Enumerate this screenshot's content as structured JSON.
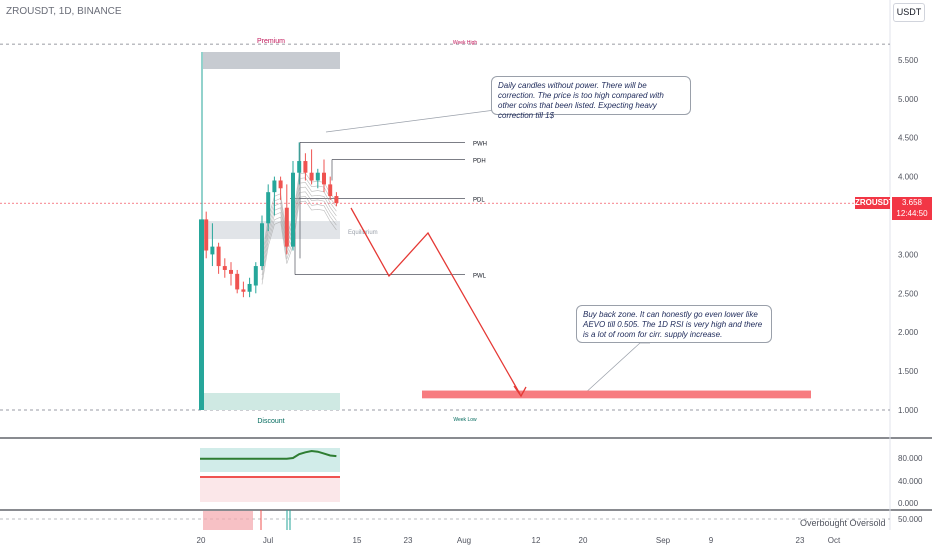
{
  "symbol_header": "ZROUSDT, 1D, BINANCE",
  "currency": "USDT",
  "price_tag": {
    "symbol": "ZROUSDT",
    "price": "3.658",
    "countdown": "12:44:50",
    "color": "#f23645"
  },
  "notes": {
    "top": "Daily candles without power. There will be correction. The price is too high compared with other coins that been listed. Expecting heavy correction till 1$",
    "bottom": "Buy back zone. It can honestly go even lower like AEVO till 0.505. The 1D RSI is very high and there is a lot of room for cirr. supply increase."
  },
  "levels": {
    "premium": "Premium",
    "discount": "Discount",
    "equilibrium": "Equilibrium",
    "week_high": "Week High",
    "week_low": "Week Low",
    "pwh": "PWH",
    "pdh": "PDH",
    "pdl": "PDL",
    "pwl": "PWL"
  },
  "indicator_legend": "Overbought  Oversold",
  "colors": {
    "up": "#26a69a",
    "down": "#ef5350",
    "projection": "#e53935",
    "buy_zone": "#f77c80",
    "premium_zone": "#c7cbd1",
    "discount_zone": "#cfe9e3",
    "rsi_line": "#2e7d32"
  },
  "chart_data": {
    "type": "candlestick",
    "title": "",
    "y_ticks": [
      "5.500",
      "5.000",
      "4.500",
      "4.000",
      "3.500",
      "3.000",
      "2.500",
      "2.000",
      "1.500",
      "1.000"
    ],
    "x_ticks": [
      "20",
      "Jul",
      "15",
      "23",
      "Aug",
      "12",
      "20",
      "Sep",
      "9",
      "23",
      "Oct"
    ],
    "ylim": [
      0.7,
      5.9
    ],
    "price_levels": {
      "week_high": 5.6,
      "week_low": 1.0,
      "pwh": 4.44,
      "pdh": 4.22,
      "pdl": 3.72,
      "pwl": 2.74,
      "equilibrium": 3.3,
      "current": 3.658
    },
    "candles": [
      {
        "o": 1.0,
        "h": 5.6,
        "l": 1.0,
        "c": 3.45
      },
      {
        "o": 3.45,
        "h": 3.55,
        "l": 2.95,
        "c": 3.05
      },
      {
        "o": 3.0,
        "h": 3.4,
        "l": 2.85,
        "c": 3.1
      },
      {
        "o": 3.1,
        "h": 3.15,
        "l": 2.75,
        "c": 2.85
      },
      {
        "o": 2.85,
        "h": 2.95,
        "l": 2.7,
        "c": 2.8
      },
      {
        "o": 2.8,
        "h": 2.9,
        "l": 2.6,
        "c": 2.75
      },
      {
        "o": 2.75,
        "h": 2.8,
        "l": 2.5,
        "c": 2.55
      },
      {
        "o": 2.55,
        "h": 2.65,
        "l": 2.45,
        "c": 2.52
      },
      {
        "o": 2.52,
        "h": 2.7,
        "l": 2.45,
        "c": 2.62
      },
      {
        "o": 2.6,
        "h": 2.9,
        "l": 2.5,
        "c": 2.85
      },
      {
        "o": 2.85,
        "h": 3.5,
        "l": 2.8,
        "c": 3.4
      },
      {
        "o": 3.4,
        "h": 3.9,
        "l": 3.3,
        "c": 3.8
      },
      {
        "o": 3.8,
        "h": 4.0,
        "l": 3.5,
        "c": 3.95
      },
      {
        "o": 3.95,
        "h": 4.0,
        "l": 3.7,
        "c": 3.85
      },
      {
        "o": 3.6,
        "h": 3.9,
        "l": 3.0,
        "c": 3.1
      },
      {
        "o": 3.1,
        "h": 4.2,
        "l": 3.05,
        "c": 4.05
      },
      {
        "o": 4.05,
        "h": 4.44,
        "l": 3.9,
        "c": 4.2
      },
      {
        "o": 4.2,
        "h": 4.3,
        "l": 3.95,
        "c": 4.05
      },
      {
        "o": 4.05,
        "h": 4.35,
        "l": 3.9,
        "c": 3.95
      },
      {
        "o": 3.95,
        "h": 4.1,
        "l": 3.85,
        "c": 4.05
      },
      {
        "o": 4.05,
        "h": 4.22,
        "l": 3.8,
        "c": 3.9
      },
      {
        "o": 3.9,
        "h": 4.0,
        "l": 3.7,
        "c": 3.75
      },
      {
        "o": 3.75,
        "h": 3.8,
        "l": 3.62,
        "c": 3.66
      }
    ],
    "projection_path": [
      {
        "bar": 23.5,
        "price": 3.7
      },
      {
        "bar": 29.5,
        "price": 2.75
      },
      {
        "bar": 34,
        "price": 3.3
      },
      {
        "bar": 43,
        "price": 1.2
      }
    ],
    "buy_zone": [
      1.15,
      1.25
    ],
    "rsi": {
      "ylim": [
        0,
        100
      ],
      "ticks": [
        "80.000",
        "40.000",
        "0.000"
      ],
      "overbought": 70,
      "oversold": 30,
      "values": [
        68,
        68,
        68,
        68,
        68,
        68,
        68,
        68,
        68,
        68,
        68,
        68,
        68,
        68,
        68,
        69,
        75,
        78,
        80,
        79,
        76,
        73,
        72
      ]
    },
    "lower_panel_tick": "50.000"
  }
}
